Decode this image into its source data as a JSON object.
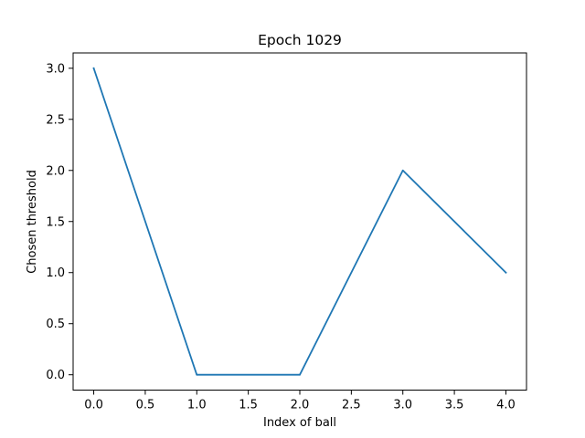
{
  "chart_data": {
    "type": "line",
    "title": "Epoch 1029",
    "xlabel": "Index of ball",
    "ylabel": "Chosen threshold",
    "x": [
      0,
      1,
      2,
      3,
      4
    ],
    "series": [
      {
        "values": [
          3,
          0,
          0,
          2,
          1
        ],
        "color": "#1f77b4"
      }
    ],
    "xlim": [
      -0.2,
      4.2
    ],
    "ylim": [
      -0.15,
      3.15
    ],
    "xticks": [
      0,
      0.5,
      1,
      1.5,
      2,
      2.5,
      3,
      3.5,
      4
    ],
    "xtick_labels": [
      "0.0",
      "0.5",
      "1.0",
      "1.5",
      "2.0",
      "2.5",
      "3.0",
      "3.5",
      "4.0"
    ],
    "yticks": [
      0,
      0.5,
      1,
      1.5,
      2,
      2.5,
      3
    ],
    "ytick_labels": [
      "0.0",
      "0.5",
      "1.0",
      "1.5",
      "2.0",
      "2.5",
      "3.0"
    ],
    "grid": false,
    "legend": "none"
  }
}
